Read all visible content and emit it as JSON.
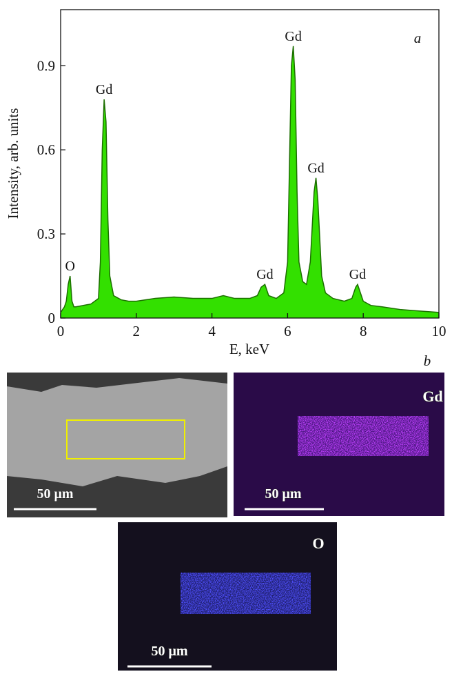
{
  "chart_data": {
    "type": "area",
    "panel_label": "a",
    "xlabel": "E, keV",
    "ylabel": "Intensity, arb. units",
    "x": [
      0,
      0.05,
      0.1,
      0.15,
      0.2,
      0.25,
      0.3,
      0.35,
      0.4,
      0.6,
      0.8,
      1.0,
      1.05,
      1.1,
      1.15,
      1.2,
      1.25,
      1.3,
      1.4,
      1.6,
      1.8,
      2.0,
      2.5,
      3.0,
      3.5,
      4.0,
      4.3,
      4.6,
      5.0,
      5.2,
      5.3,
      5.4,
      5.5,
      5.7,
      5.9,
      6.0,
      6.05,
      6.1,
      6.15,
      6.2,
      6.25,
      6.3,
      6.4,
      6.5,
      6.6,
      6.7,
      6.75,
      6.8,
      6.9,
      7.0,
      7.2,
      7.5,
      7.7,
      7.8,
      7.85,
      7.9,
      8.0,
      8.2,
      8.5,
      9.0,
      9.5,
      10.0
    ],
    "values": [
      0.02,
      0.03,
      0.04,
      0.06,
      0.12,
      0.15,
      0.06,
      0.04,
      0.04,
      0.045,
      0.05,
      0.07,
      0.2,
      0.6,
      0.78,
      0.7,
      0.35,
      0.15,
      0.08,
      0.065,
      0.06,
      0.06,
      0.07,
      0.075,
      0.07,
      0.07,
      0.08,
      0.07,
      0.07,
      0.08,
      0.11,
      0.12,
      0.08,
      0.07,
      0.09,
      0.2,
      0.55,
      0.9,
      0.97,
      0.85,
      0.45,
      0.2,
      0.13,
      0.12,
      0.2,
      0.45,
      0.5,
      0.42,
      0.15,
      0.09,
      0.07,
      0.06,
      0.07,
      0.11,
      0.12,
      0.1,
      0.06,
      0.045,
      0.04,
      0.03,
      0.025,
      0.02
    ],
    "color": "#33e000",
    "line_color": "#1c6e00",
    "xlim": [
      0,
      10
    ],
    "xticks": [
      0,
      2,
      4,
      6,
      8,
      10
    ],
    "ylim": [
      0,
      1.1
    ],
    "yticks": [
      0,
      0.3,
      0.6,
      0.9
    ],
    "annotations": [
      {
        "text": "O",
        "x": 0.25
      },
      {
        "text": "Gd",
        "x": 1.15
      },
      {
        "text": "Gd",
        "x": 5.4
      },
      {
        "text": "Gd",
        "x": 6.15
      },
      {
        "text": "Gd",
        "x": 6.75
      },
      {
        "text": "Gd",
        "x": 7.85
      }
    ]
  },
  "images": {
    "panel_label": "b",
    "items": [
      {
        "scale_bar": "50 μm"
      },
      {
        "element": "Gd",
        "scale_bar": "50 μm"
      },
      {
        "element": "O",
        "scale_bar": "50 μm"
      }
    ]
  }
}
